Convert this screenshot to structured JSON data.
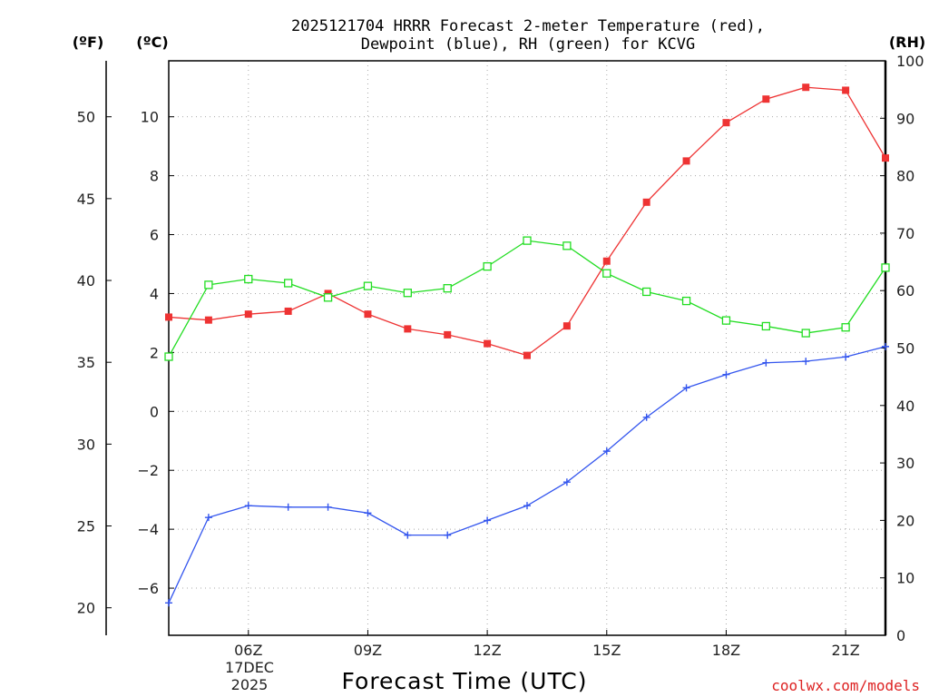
{
  "chart_data": {
    "type": "line",
    "title": "2025121704 HRRR Forecast 2-meter Temperature (red),",
    "subtitle": "Dewpoint (blue), RH (green) for KCVG",
    "xlabel": "Forecast Time (UTC)",
    "credit": "coolwx.com/models",
    "units": {
      "fahrenheit": "(ºF)",
      "celsius": "(ºC)",
      "rh": "(RH)"
    },
    "x_hours": [
      4,
      5,
      6,
      7,
      8,
      9,
      10,
      11,
      12,
      13,
      14,
      15,
      16,
      17,
      18,
      19,
      20,
      21,
      22
    ],
    "xlim": [
      4,
      22
    ],
    "x_ticks": [
      {
        "hour": 6,
        "label": "06Z",
        "date": "17DEC",
        "year": "2025"
      },
      {
        "hour": 9,
        "label": "09Z"
      },
      {
        "hour": 12,
        "label": "12Z"
      },
      {
        "hour": 15,
        "label": "15Z"
      },
      {
        "hour": 18,
        "label": "18Z"
      },
      {
        "hour": 21,
        "label": "21Z"
      }
    ],
    "celsius_axis": {
      "ylim": [
        -7.6,
        11.9
      ],
      "ticks": [
        -6,
        -4,
        -2,
        0,
        2,
        4,
        6,
        8,
        10
      ],
      "tick_labels": [
        "−6",
        "−4",
        "−2",
        "0",
        "2",
        "4",
        "6",
        "8",
        "10"
      ]
    },
    "fahrenheit_axis": {
      "ticks": [
        20,
        25,
        30,
        35,
        40,
        45,
        50
      ],
      "tick_labels": [
        "20",
        "25",
        "30",
        "35",
        "40",
        "45",
        "50"
      ]
    },
    "rh_axis": {
      "ylim": [
        0,
        100
      ],
      "ticks": [
        0,
        10,
        20,
        30,
        40,
        50,
        60,
        70,
        80,
        90,
        100
      ],
      "tick_labels": [
        "0",
        "10",
        "20",
        "30",
        "40",
        "50",
        "60",
        "70",
        "80",
        "90",
        "100"
      ]
    },
    "series": [
      {
        "name": "Temperature",
        "unit": "C",
        "color": "#ee3333",
        "marker": "filled-square",
        "values": [
          3.2,
          3.1,
          3.3,
          3.4,
          4.0,
          3.3,
          2.8,
          2.6,
          2.3,
          1.9,
          2.9,
          5.1,
          7.1,
          8.5,
          9.8,
          10.6,
          11.0,
          10.9,
          8.6
        ]
      },
      {
        "name": "Dewpoint",
        "unit": "C",
        "color": "#3355ee",
        "marker": "plus",
        "values": [
          -6.5,
          -3.6,
          -3.2,
          -3.25,
          -3.25,
          -3.45,
          -4.2,
          -4.2,
          -3.7,
          -3.2,
          -2.4,
          -1.35,
          -0.2,
          0.8,
          1.25,
          1.65,
          1.7,
          1.85,
          2.2
        ]
      },
      {
        "name": "RH",
        "unit": "%",
        "color": "#22dd22",
        "marker": "open-square",
        "values": [
          48.5,
          61.0,
          62.0,
          61.3,
          58.8,
          60.8,
          59.6,
          60.4,
          64.2,
          68.7,
          67.8,
          63.0,
          59.8,
          58.2,
          54.8,
          53.8,
          52.6,
          53.6,
          64.0
        ]
      }
    ]
  }
}
